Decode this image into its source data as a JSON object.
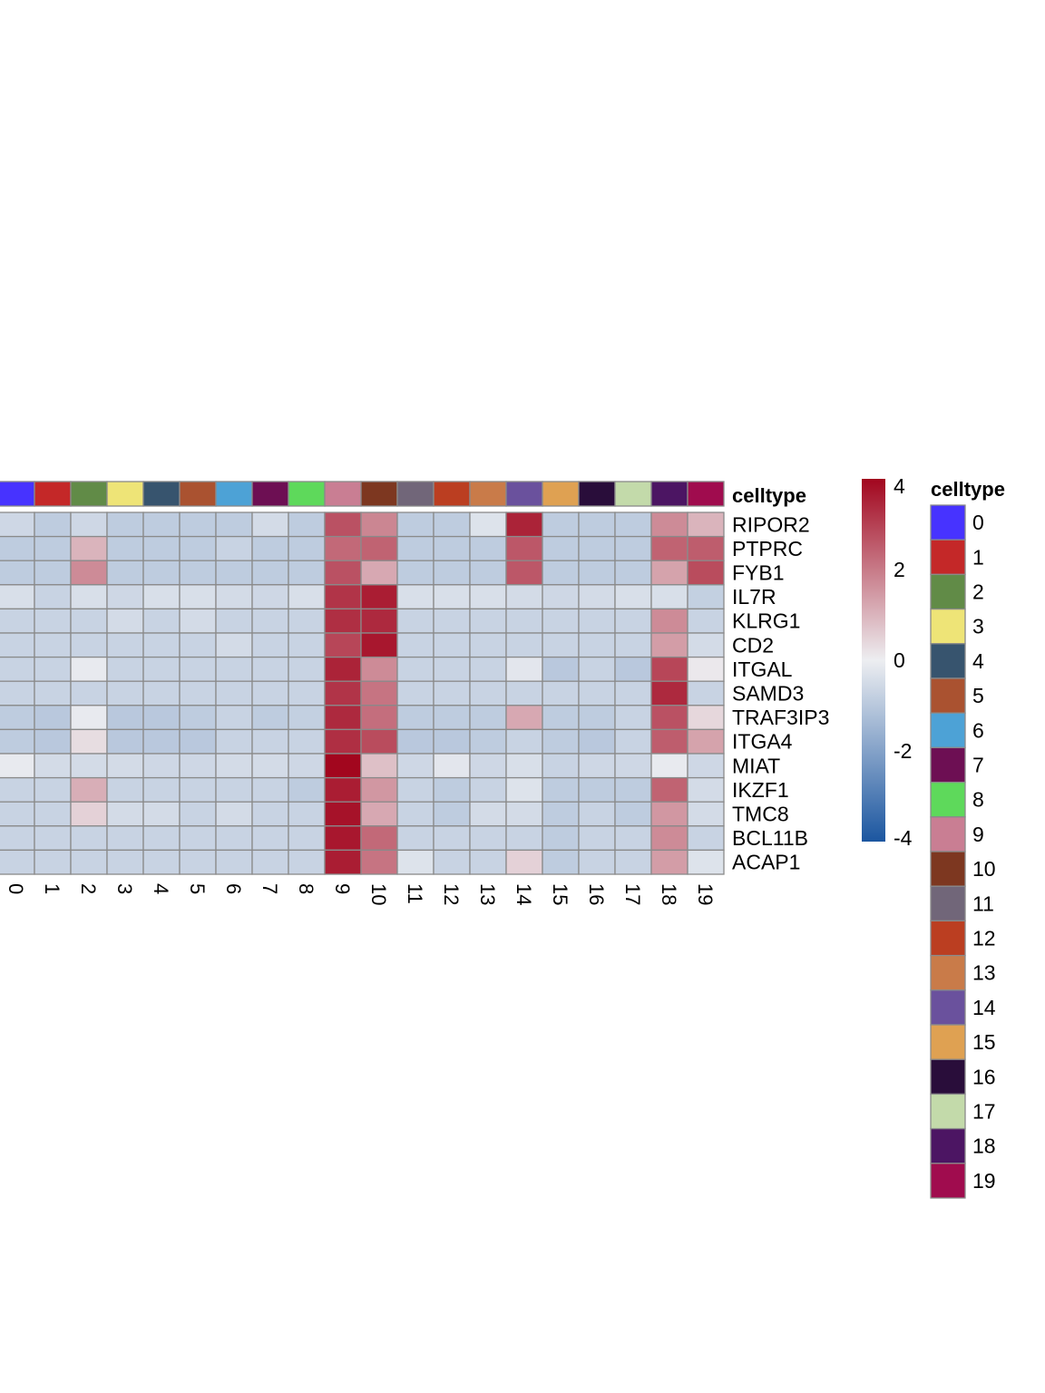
{
  "chart_data": {
    "type": "heatmap",
    "columns": [
      "0",
      "1",
      "2",
      "3",
      "4",
      "5",
      "6",
      "7",
      "8",
      "9",
      "10",
      "11",
      "12",
      "13",
      "14",
      "15",
      "16",
      "17",
      "18",
      "19"
    ],
    "rows": [
      "RIPOR2",
      "PTPRC",
      "FYB1",
      "IL7R",
      "KLRG1",
      "CD2",
      "ITGAL",
      "SAMD3",
      "TRAF3IP3",
      "ITGA4",
      "MIAT",
      "IKZF1",
      "TMC8",
      "BCL11B",
      "ACAP1"
    ],
    "values": [
      [
        -0.6,
        -0.9,
        -0.6,
        -0.9,
        -0.9,
        -0.9,
        -0.9,
        -0.5,
        -0.9,
        2.7,
        1.8,
        -0.9,
        -0.9,
        -0.3,
        3.5,
        -0.9,
        -0.9,
        -0.9,
        1.7,
        1.0
      ],
      [
        -0.9,
        -0.9,
        1.0,
        -0.9,
        -0.9,
        -0.9,
        -0.7,
        -0.9,
        -0.9,
        2.3,
        2.4,
        -0.9,
        -0.9,
        -0.9,
        2.6,
        -0.9,
        -0.9,
        -0.9,
        2.4,
        2.5
      ],
      [
        -0.9,
        -0.9,
        1.7,
        -0.9,
        -0.9,
        -0.9,
        -0.9,
        -0.9,
        -0.9,
        2.7,
        1.2,
        -0.9,
        -0.9,
        -0.9,
        2.6,
        -0.9,
        -0.9,
        -0.9,
        1.3,
        2.8
      ],
      [
        -0.4,
        -0.7,
        -0.4,
        -0.6,
        -0.4,
        -0.4,
        -0.5,
        -0.6,
        -0.4,
        3.2,
        3.6,
        -0.4,
        -0.4,
        -0.4,
        -0.5,
        -0.6,
        -0.5,
        -0.4,
        -0.4,
        -0.8
      ],
      [
        -0.7,
        -0.7,
        -0.7,
        -0.5,
        -0.7,
        -0.5,
        -0.7,
        -0.7,
        -0.7,
        3.3,
        3.4,
        -0.7,
        -0.7,
        -0.7,
        -0.7,
        -0.7,
        -0.7,
        -0.7,
        1.7,
        -0.7
      ],
      [
        -0.7,
        -0.7,
        -0.7,
        -0.7,
        -0.7,
        -0.7,
        -0.5,
        -0.7,
        -0.7,
        2.9,
        3.7,
        -0.7,
        -0.7,
        -0.7,
        -0.7,
        -0.7,
        -0.7,
        -0.7,
        1.4,
        -0.5
      ],
      [
        -0.7,
        -0.7,
        -0.1,
        -0.7,
        -0.7,
        -0.7,
        -0.7,
        -0.7,
        -0.7,
        3.5,
        1.7,
        -0.7,
        -0.7,
        -0.7,
        -0.2,
        -1.0,
        -0.7,
        -1.0,
        2.9,
        0.1
      ],
      [
        -0.7,
        -0.7,
        -0.7,
        -0.7,
        -0.7,
        -0.7,
        -0.7,
        -0.7,
        -0.7,
        3.2,
        2.1,
        -0.7,
        -0.7,
        -0.7,
        -0.7,
        -0.7,
        -0.7,
        -0.7,
        3.4,
        -0.7
      ],
      [
        -0.9,
        -1.0,
        -0.1,
        -1.0,
        -1.0,
        -0.9,
        -0.7,
        -0.9,
        -0.8,
        3.4,
        2.2,
        -0.9,
        -0.9,
        -0.9,
        1.2,
        -0.9,
        -0.9,
        -0.7,
        2.7,
        0.4
      ],
      [
        -0.9,
        -1.0,
        0.3,
        -1.0,
        -1.0,
        -1.0,
        -0.7,
        -0.7,
        -0.7,
        3.3,
        2.8,
        -1.0,
        -1.0,
        -0.9,
        -0.7,
        -0.9,
        -1.0,
        -0.7,
        2.5,
        1.3
      ],
      [
        -0.1,
        -0.5,
        -0.5,
        -0.5,
        -0.6,
        -0.6,
        -0.5,
        -0.5,
        -0.6,
        4.2,
        0.8,
        -0.6,
        -0.2,
        -0.6,
        -0.4,
        -0.7,
        -0.6,
        -0.6,
        -0.1,
        -0.6
      ],
      [
        -0.7,
        -0.7,
        1.1,
        -0.7,
        -0.7,
        -0.7,
        -0.7,
        -0.7,
        -0.9,
        3.6,
        1.5,
        -0.7,
        -0.9,
        -0.7,
        -0.3,
        -0.9,
        -0.9,
        -0.9,
        2.4,
        -0.5
      ],
      [
        -0.7,
        -0.7,
        0.5,
        -0.5,
        -0.5,
        -0.7,
        -0.5,
        -0.7,
        -0.7,
        3.8,
        1.2,
        -0.7,
        -0.9,
        -0.5,
        -0.5,
        -0.9,
        -0.7,
        -0.9,
        1.5,
        -0.5
      ],
      [
        -0.7,
        -0.7,
        -0.7,
        -0.7,
        -0.7,
        -0.7,
        -0.7,
        -0.7,
        -0.7,
        3.7,
        2.3,
        -0.7,
        -0.7,
        -0.7,
        -0.7,
        -0.9,
        -0.7,
        -0.7,
        1.7,
        -0.7
      ],
      [
        -0.7,
        -0.7,
        -0.7,
        -0.7,
        -0.7,
        -0.7,
        -0.7,
        -0.7,
        -0.7,
        3.6,
        2.1,
        -0.3,
        -0.7,
        -0.7,
        0.5,
        -0.9,
        -0.7,
        -0.7,
        1.4,
        -0.3
      ]
    ],
    "annotation_title": "celltype",
    "annotation_colors": [
      "#4733FF",
      "#C42828",
      "#618B47",
      "#EEE477",
      "#37546E",
      "#AA5230",
      "#4DA2D6",
      "#6D0F53",
      "#5ED95B",
      "#C97E93",
      "#7D3720",
      "#716679",
      "#BB3E21",
      "#C97B49",
      "#6A519D",
      "#DFA152",
      "#290D3A",
      "#C3DAAA",
      "#4C1563",
      "#A00C4E"
    ],
    "colorbar_ticks": [
      "4",
      "2",
      "0",
      "-2",
      "-4"
    ],
    "color_range": [
      -4,
      4
    ],
    "colorbar_colors": [
      "#1B56A0",
      "#EDEEF1",
      "#A2061E"
    ]
  }
}
